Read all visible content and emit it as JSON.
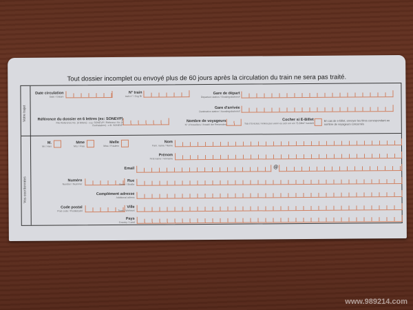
{
  "title": "Tout dossier incomplet ou envoyé plus de 60 jours après la circulation du train ne sera pas traité.",
  "sections": {
    "trip": "Votre trajet",
    "contact": "Vos coordonnées"
  },
  "fields": {
    "date": {
      "label": "Date circulation",
      "sub": "Date / Datum"
    },
    "train": {
      "label": "N° train",
      "sub": "train n° / Zug Nr"
    },
    "depart": {
      "label": "Gare de départ",
      "sub": "Departure station / Einstiegsbahnhof"
    },
    "arrivee": {
      "label": "Gare d'arrivée",
      "sub": "Destination station / Ausstiegsbahnhof"
    },
    "reference": {
      "label": "Référence du dossier en 6 lettres (ex: SONEVP)",
      "sub": "File Reference No. (6 letters) - e.g. SONEVP / Referenz -Nr. (6 Buchstaben) - z.B. SONEVP"
    },
    "voyageurs": {
      "label": "Nombre de voyageurs",
      "sub": "N° of travellers / Anzahl der Reisenden"
    },
    "ebillet": {
      "label": "Cocher si E-Billet",
      "sub": "Tick if E-ticket / Ankreuzen wenn es sich um ein \"E-Billet\" handelt",
      "note": "En cas de e-billet, envoyer les titres correspondant au nombre de voyageurs concernés"
    },
    "m": {
      "label": "M.",
      "sub": "Mr / Herr"
    },
    "mme": {
      "label": "Mme",
      "sub": "Mrs / Frau"
    },
    "melle": {
      "label": "Melle",
      "sub": "Miss / Fräulein"
    },
    "nom": {
      "label": "Nom",
      "sub": "Fam. name / Name"
    },
    "prenom": {
      "label": "Prénom",
      "sub": "First name / Vorname"
    },
    "email": {
      "label": "Email",
      "at": "@"
    },
    "numero": {
      "label": "Numéro",
      "sub": "Number / Nummer"
    },
    "rue": {
      "label": "Rue",
      "sub": "Street / Straße"
    },
    "complement": {
      "label": "Complément adresse",
      "sub": "Additional adress"
    },
    "cp": {
      "label": "Code postal",
      "sub": "Post code / Postleitzahl"
    },
    "ville": {
      "label": "Ville",
      "sub": "Town / Wohnort"
    },
    "pays": {
      "label": "Pays",
      "sub": "Country / Land"
    }
  },
  "watermark": "www.989214.com"
}
